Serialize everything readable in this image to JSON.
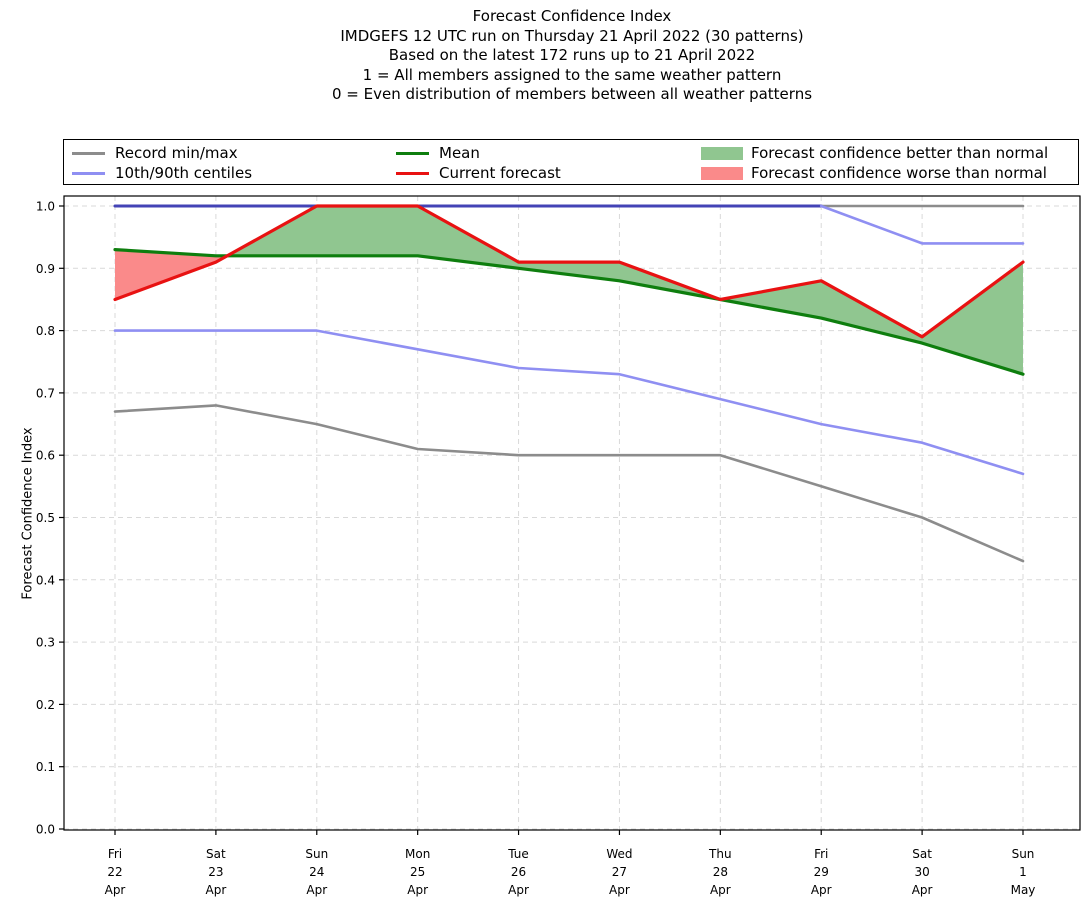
{
  "title": {
    "lines": [
      "Forecast Confidence Index",
      "IMDGEFS 12 UTC run on Thursday 21 April 2022 (30 patterns)",
      "Based on the latest 172 runs up to 21 April 2022",
      "1 = All members assigned to the same weather pattern",
      "0 = Even distribution of members between all weather patterns"
    ]
  },
  "legend": {
    "items": [
      {
        "label": "Record min/max",
        "type": "line",
        "color": "#8c8c8c"
      },
      {
        "label": "10th/90th centiles",
        "type": "line",
        "color": "#8f8ff2"
      },
      {
        "label": "Mean",
        "type": "line",
        "color": "#0e7e0e"
      },
      {
        "label": "Current forecast",
        "type": "line",
        "color": "#e81212"
      },
      {
        "label": "Forecast confidence better than normal",
        "type": "patch",
        "color": "#90c690"
      },
      {
        "label": "Forecast confidence worse than normal",
        "type": "patch",
        "color": "#fa8a8a"
      }
    ]
  },
  "chart_data": {
    "type": "line",
    "title": "Forecast Confidence Index",
    "xlabel": "",
    "ylabel": "Forecast Confidence Index",
    "ylim": [
      0.0,
      1.0
    ],
    "grid": true,
    "legend_position": "top",
    "x_tick_labels": [
      [
        "Fri",
        "22",
        "Apr"
      ],
      [
        "Sat",
        "23",
        "Apr"
      ],
      [
        "Sun",
        "24",
        "Apr"
      ],
      [
        "Mon",
        "25",
        "Apr"
      ],
      [
        "Tue",
        "26",
        "Apr"
      ],
      [
        "Wed",
        "27",
        "Apr"
      ],
      [
        "Thu",
        "28",
        "Apr"
      ],
      [
        "Fri",
        "29",
        "Apr"
      ],
      [
        "Sat",
        "30",
        "Apr"
      ],
      [
        "Sun",
        "1",
        "May"
      ]
    ],
    "y_tick_labels": [
      "0.0",
      "0.1",
      "0.2",
      "0.3",
      "0.4",
      "0.5",
      "0.6",
      "0.7",
      "0.8",
      "0.9",
      "1.0"
    ],
    "series": [
      {
        "name": "Record max",
        "values": [
          1.0,
          1.0,
          1.0,
          1.0,
          1.0,
          1.0,
          1.0,
          1.0,
          1.0,
          1.0
        ],
        "color": "#8c8c8c",
        "width": 2.6
      },
      {
        "name": "Record min",
        "values": [
          0.67,
          0.68,
          0.65,
          0.61,
          0.6,
          0.6,
          0.6,
          0.55,
          0.5,
          0.43
        ],
        "color": "#8c8c8c",
        "width": 2.6
      },
      {
        "name": "90th centile",
        "values": [
          1.0,
          1.0,
          1.0,
          1.0,
          1.0,
          1.0,
          1.0,
          1.0,
          0.94,
          0.94
        ],
        "color": "#8f8ff2",
        "width": 2.6
      },
      {
        "name": "10th centile",
        "values": [
          0.8,
          0.8,
          0.8,
          0.77,
          0.74,
          0.73,
          0.69,
          0.65,
          0.62,
          0.57
        ],
        "color": "#8f8ff2",
        "width": 2.6
      },
      {
        "name": "Mean",
        "values": [
          0.93,
          0.92,
          0.92,
          0.92,
          0.9,
          0.88,
          0.85,
          0.82,
          0.78,
          0.73
        ],
        "color": "#0e7e0e",
        "width": 3.2
      },
      {
        "name": "Current forecast",
        "values": [
          0.85,
          0.91,
          1.0,
          1.0,
          0.91,
          0.91,
          0.85,
          0.88,
          0.79,
          0.91
        ],
        "color": "#e81212",
        "width": 3.2
      }
    ],
    "fills": {
      "better_than_normal_color": "#90c690",
      "worse_than_normal_color": "#fa8a8a",
      "between": [
        "Current forecast",
        "Mean"
      ]
    },
    "overlap_90th_with_max_color": "#4343b6"
  }
}
